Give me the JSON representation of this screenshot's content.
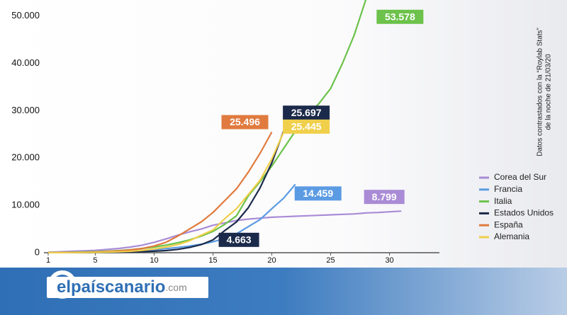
{
  "chart_data": {
    "type": "line",
    "annotations": [
      "Datos contrastados con la “Roylab Stats”",
      "de la noche de 21/03/20"
    ],
    "xlim": [
      1,
      34
    ],
    "xticks": [
      1,
      5,
      10,
      15,
      20,
      25,
      30
    ],
    "ylim": [
      0,
      51000
    ],
    "yticks": [
      {
        "value": 0,
        "label": "0"
      },
      {
        "value": 10000,
        "label": "10.000"
      },
      {
        "value": 20000,
        "label": "20.000"
      },
      {
        "value": 30000,
        "label": "30.000"
      },
      {
        "value": 40000,
        "label": "40.000"
      },
      {
        "value": 50000,
        "label": "50.000"
      }
    ],
    "grid": false,
    "legend": "right",
    "series": [
      {
        "name": "Corea del Sur",
        "color": "#a98bd6",
        "x": [
          1,
          2,
          3,
          4,
          5,
          6,
          7,
          8,
          9,
          10,
          11,
          12,
          13,
          14,
          15,
          16,
          17,
          18,
          19,
          20,
          21,
          22,
          23,
          24,
          25,
          26,
          27,
          28,
          29,
          30,
          31
        ],
        "values": [
          100,
          200,
          300,
          400,
          500,
          700,
          900,
          1200,
          1600,
          2200,
          2900,
          3700,
          4400,
          5000,
          5800,
          6300,
          6800,
          7100,
          7300,
          7500,
          7600,
          7700,
          7800,
          7900,
          8000,
          8100,
          8200,
          8400,
          8500,
          8650,
          8799
        ],
        "value_labels": [
          null,
          null,
          null,
          null,
          null,
          null,
          null,
          null,
          null,
          null,
          null,
          null,
          null,
          null,
          null,
          null,
          null,
          null,
          null,
          null,
          null,
          null,
          null,
          null,
          null,
          null,
          null,
          null,
          null,
          null,
          "8.799"
        ]
      },
      {
        "name": "Francia",
        "color": "#5b9be3",
        "x": [
          1,
          2,
          3,
          4,
          5,
          6,
          7,
          8,
          9,
          10,
          11,
          12,
          13,
          14,
          15,
          16,
          17,
          18,
          19,
          20,
          21,
          22
        ],
        "values": [
          20,
          40,
          60,
          100,
          150,
          200,
          280,
          380,
          500,
          650,
          850,
          1100,
          1400,
          1800,
          2300,
          3000,
          4000,
          5500,
          7000,
          9300,
          11500,
          14459
        ],
        "value_labels": [
          null,
          null,
          null,
          null,
          null,
          null,
          null,
          null,
          null,
          null,
          null,
          null,
          null,
          null,
          null,
          null,
          null,
          null,
          null,
          null,
          null,
          "14.459"
        ]
      },
      {
        "name": "Italia",
        "color": "#6cc24a",
        "x": [
          1,
          2,
          3,
          4,
          5,
          6,
          7,
          8,
          9,
          10,
          11,
          12,
          13,
          14,
          15,
          16,
          17,
          18,
          19,
          20,
          21,
          22,
          23,
          24,
          25,
          26,
          27,
          28
        ],
        "values": [
          30,
          60,
          100,
          150,
          230,
          320,
          450,
          650,
          900,
          1200,
          1600,
          2100,
          2700,
          3500,
          4500,
          6000,
          7800,
          12000,
          15000,
          18300,
          22000,
          25700,
          29000,
          31500,
          34700,
          40000,
          46000,
          53578
        ],
        "value_labels": [
          null,
          null,
          null,
          null,
          null,
          null,
          null,
          null,
          null,
          null,
          null,
          null,
          null,
          null,
          null,
          null,
          null,
          null,
          null,
          null,
          null,
          null,
          null,
          null,
          null,
          null,
          null,
          "53.578"
        ]
      },
      {
        "name": "Estados Unidos",
        "color": "#1b2a4a",
        "x": [
          1,
          2,
          3,
          4,
          5,
          6,
          7,
          8,
          9,
          10,
          11,
          12,
          13,
          14,
          15,
          16,
          17,
          18,
          19,
          20,
          21
        ],
        "values": [
          15,
          15,
          20,
          30,
          50,
          70,
          100,
          150,
          220,
          320,
          450,
          700,
          1100,
          1700,
          2700,
          4663,
          6500,
          9500,
          13700,
          19000,
          25697
        ],
        "value_labels": [
          null,
          null,
          null,
          null,
          null,
          null,
          null,
          null,
          null,
          null,
          null,
          null,
          null,
          null,
          null,
          "4.663",
          null,
          null,
          null,
          null,
          "25.697"
        ]
      },
      {
        "name": "España",
        "color": "#e07a3e",
        "x": [
          1,
          2,
          3,
          4,
          5,
          6,
          7,
          8,
          9,
          10,
          11,
          12,
          13,
          14,
          15,
          16,
          17,
          18,
          19,
          20
        ],
        "values": [
          10,
          20,
          40,
          80,
          150,
          250,
          400,
          600,
          900,
          1400,
          2200,
          3500,
          5000,
          6500,
          8500,
          11000,
          13500,
          17000,
          21000,
          25496
        ],
        "value_labels": [
          null,
          null,
          null,
          null,
          null,
          null,
          null,
          null,
          null,
          null,
          null,
          null,
          null,
          null,
          null,
          null,
          null,
          null,
          null,
          "25.496"
        ]
      },
      {
        "name": "Alemania",
        "color": "#f0cf4a",
        "x": [
          1,
          2,
          3,
          4,
          5,
          6,
          7,
          8,
          9,
          10,
          11,
          12,
          13,
          14,
          15,
          16,
          17,
          18,
          19,
          20,
          21
        ],
        "values": [
          15,
          20,
          30,
          50,
          80,
          120,
          200,
          300,
          500,
          800,
          1200,
          1700,
          2500,
          3700,
          4800,
          7200,
          9300,
          12300,
          15300,
          19800,
          25445
        ],
        "value_labels": [
          null,
          null,
          null,
          null,
          null,
          null,
          null,
          null,
          null,
          null,
          null,
          null,
          null,
          null,
          null,
          null,
          null,
          null,
          null,
          null,
          "25.445"
        ]
      }
    ]
  },
  "banner": {
    "site": "elpaíscanario",
    "domain": ".com"
  }
}
